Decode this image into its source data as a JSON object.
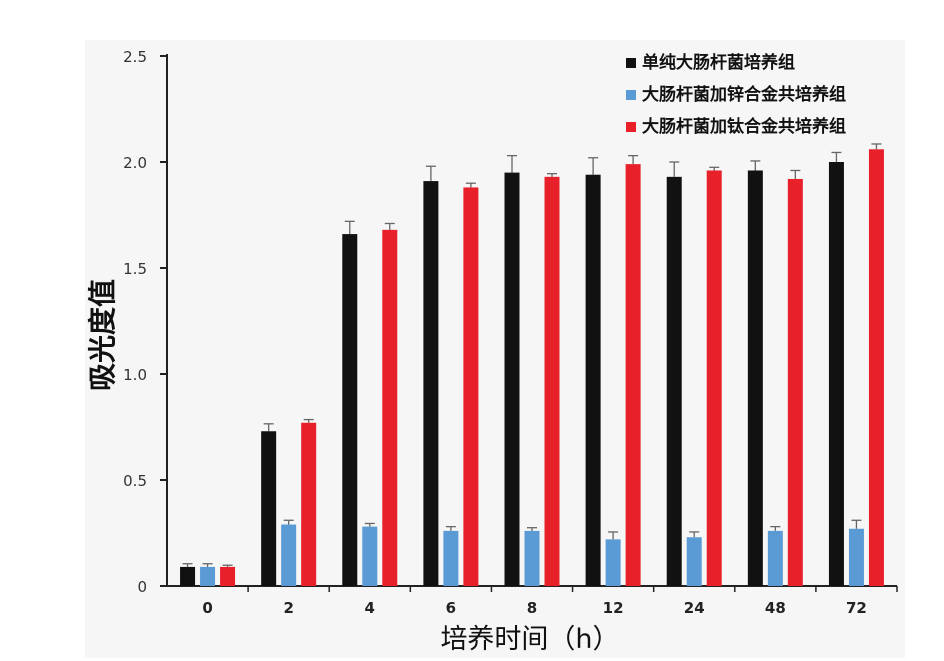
{
  "chart_data": {
    "type": "bar",
    "title": "",
    "xlabel": "培养时间（h）",
    "ylabel": "吸光度值",
    "ylim": [
      0,
      2.5
    ],
    "yticks": [
      "0",
      "0.5",
      "1.0",
      "1.5",
      "2.0",
      "2.5"
    ],
    "categories": [
      "0",
      "2",
      "4",
      "6",
      "8",
      "12",
      "24",
      "48",
      "72"
    ],
    "legend_position": "top-right",
    "grid": false,
    "series": [
      {
        "name": "单纯大肠杆菌培养组",
        "color": "#111111",
        "values": [
          0.09,
          0.73,
          1.66,
          1.91,
          1.95,
          1.94,
          1.93,
          1.96,
          2.0
        ],
        "errors": [
          0.015,
          0.035,
          0.06,
          0.07,
          0.08,
          0.08,
          0.07,
          0.045,
          0.045
        ]
      },
      {
        "name": "大肠杆菌加锌合金共培养组",
        "color": "#5b9bd5",
        "values": [
          0.09,
          0.29,
          0.28,
          0.26,
          0.26,
          0.22,
          0.23,
          0.26,
          0.27
        ],
        "errors": [
          0.015,
          0.02,
          0.015,
          0.02,
          0.015,
          0.035,
          0.025,
          0.02,
          0.04
        ]
      },
      {
        "name": "大肠杆菌加钛合金共培养组",
        "color": "#e8202a",
        "values": [
          0.09,
          0.77,
          1.68,
          1.88,
          1.93,
          1.99,
          1.96,
          1.92,
          2.06
        ],
        "errors": [
          0.008,
          0.015,
          0.03,
          0.02,
          0.015,
          0.04,
          0.015,
          0.04,
          0.025
        ]
      }
    ]
  }
}
